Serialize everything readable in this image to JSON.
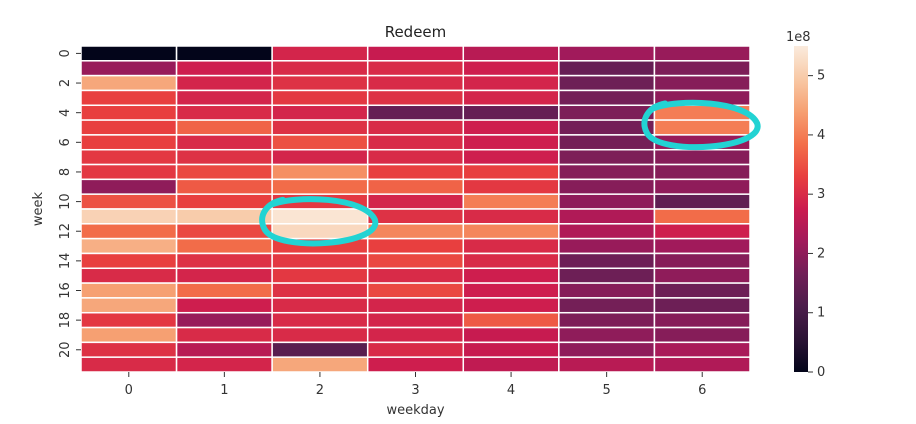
{
  "chart_data": {
    "type": "heatmap",
    "title": "Redeem",
    "xlabel": "weekday",
    "ylabel": "week",
    "x_tick_labels": [
      "0",
      "1",
      "2",
      "3",
      "4",
      "5",
      "6"
    ],
    "y_tick_labels": [
      "0",
      "2",
      "4",
      "6",
      "8",
      "10",
      "12",
      "14",
      "16",
      "18",
      "20"
    ],
    "colorbar": {
      "offset_label": "1e8",
      "ticks": [
        "0",
        "1",
        "2",
        "3",
        "4",
        "5"
      ],
      "min": 0,
      "max": 550000000,
      "colormap": "rocket"
    },
    "cell_gridlines": true,
    "annotations": [
      {
        "type": "hand-drawn-circle",
        "color": "#22d3d3",
        "week": 5,
        "weekday": 6
      },
      {
        "type": "hand-drawn-circle",
        "color": "#22d3d3",
        "week": 11.5,
        "weekday": 2
      }
    ],
    "weeks": 22,
    "weekdays": 7,
    "values": [
      [
        0,
        0,
        290000000,
        270000000,
        250000000,
        220000000,
        210000000
      ],
      [
        210000000,
        280000000,
        300000000,
        300000000,
        280000000,
        150000000,
        180000000
      ],
      [
        450000000,
        290000000,
        310000000,
        300000000,
        290000000,
        160000000,
        190000000
      ],
      [
        330000000,
        290000000,
        320000000,
        310000000,
        290000000,
        170000000,
        200000000
      ],
      [
        330000000,
        300000000,
        290000000,
        150000000,
        150000000,
        180000000,
        400000000
      ],
      [
        330000000,
        370000000,
        310000000,
        300000000,
        280000000,
        170000000,
        400000000
      ],
      [
        330000000,
        300000000,
        350000000,
        300000000,
        280000000,
        170000000,
        210000000
      ],
      [
        320000000,
        310000000,
        290000000,
        300000000,
        280000000,
        180000000,
        190000000
      ],
      [
        320000000,
        340000000,
        420000000,
        330000000,
        330000000,
        190000000,
        190000000
      ],
      [
        200000000,
        360000000,
        380000000,
        370000000,
        320000000,
        190000000,
        200000000
      ],
      [
        350000000,
        330000000,
        320000000,
        290000000,
        400000000,
        200000000,
        140000000
      ],
      [
        510000000,
        500000000,
        540000000,
        310000000,
        300000000,
        240000000,
        380000000
      ],
      [
        380000000,
        340000000,
        520000000,
        410000000,
        410000000,
        240000000,
        280000000
      ],
      [
        460000000,
        380000000,
        330000000,
        330000000,
        300000000,
        210000000,
        220000000
      ],
      [
        330000000,
        310000000,
        320000000,
        340000000,
        300000000,
        160000000,
        190000000
      ],
      [
        300000000,
        290000000,
        320000000,
        300000000,
        280000000,
        160000000,
        200000000
      ],
      [
        440000000,
        380000000,
        310000000,
        340000000,
        280000000,
        190000000,
        160000000
      ],
      [
        450000000,
        280000000,
        300000000,
        290000000,
        280000000,
        170000000,
        160000000
      ],
      [
        320000000,
        210000000,
        300000000,
        290000000,
        360000000,
        180000000,
        190000000
      ],
      [
        440000000,
        300000000,
        300000000,
        290000000,
        270000000,
        200000000,
        190000000
      ],
      [
        310000000,
        250000000,
        130000000,
        300000000,
        270000000,
        200000000,
        230000000
      ],
      [
        300000000,
        290000000,
        450000000,
        280000000,
        260000000,
        250000000,
        240000000
      ]
    ]
  }
}
